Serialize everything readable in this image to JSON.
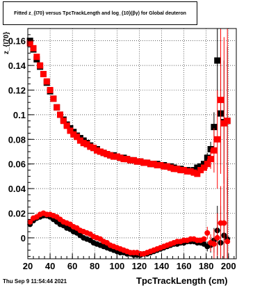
{
  "chart_data": {
    "type": "scatter",
    "title": "Fitted z_{I70} versus TpcTrackLength and log_{10}(βγ) for Global deuteron",
    "xlabel": "TpcTrackLength (cm)",
    "ylabel": "z_{I70}",
    "xlim": [
      20,
      207
    ],
    "ylim": [
      -0.017,
      0.17
    ],
    "xticks": [
      "20",
      "40",
      "60",
      "80",
      "100",
      "120",
      "140",
      "160",
      "180",
      "200"
    ],
    "yticks": [
      "0",
      "0.02",
      "0.04",
      "0.06",
      "0.08",
      "0.1",
      "0.12",
      "0.14",
      "0.16"
    ],
    "grid": true,
    "series": [
      {
        "color": "#000000",
        "marker": "square",
        "x": [
          22,
          25,
          28,
          31,
          34,
          37,
          40,
          43,
          46,
          49,
          52,
          55,
          58,
          61,
          64,
          67,
          70,
          73,
          76,
          79,
          82,
          85,
          88,
          91,
          94,
          97,
          100,
          103,
          106,
          109,
          112,
          115,
          118,
          121,
          124,
          127,
          130,
          133,
          136,
          139,
          142,
          145,
          148,
          151,
          154,
          157,
          160,
          163,
          166,
          169,
          172,
          175,
          178,
          181,
          184,
          187,
          190,
          193,
          196,
          199
        ],
        "y": [
          0.16,
          0.153,
          0.145,
          0.139,
          0.133,
          0.126,
          0.119,
          0.113,
          0.106,
          0.1,
          0.096,
          0.092,
          0.089,
          0.086,
          0.083,
          0.081,
          0.079,
          0.077,
          0.075,
          0.073,
          0.072,
          0.07,
          0.069,
          0.068,
          0.067,
          0.067,
          0.066,
          0.065,
          0.065,
          0.064,
          0.063,
          0.063,
          0.062,
          0.062,
          0.061,
          0.061,
          0.06,
          0.06,
          0.06,
          0.059,
          0.059,
          0.058,
          0.058,
          0.057,
          0.056,
          0.056,
          0.055,
          0.055,
          0.054,
          0.055,
          0.057,
          0.058,
          0.06,
          0.065,
          0.072,
          0.09,
          0.144,
          0.101,
          0.094,
          0.095
        ],
        "yerr": [
          0,
          0,
          0,
          0,
          0,
          0,
          0,
          0,
          0,
          0,
          0,
          0,
          0,
          0,
          0,
          0,
          0,
          0,
          0,
          0,
          0,
          0,
          0,
          0,
          0,
          0,
          0,
          0,
          0,
          0,
          0,
          0,
          0,
          0,
          0,
          0,
          0,
          0,
          0,
          0,
          0,
          0,
          0,
          0,
          0,
          0,
          0,
          0,
          0,
          0,
          0,
          0,
          0,
          0.004,
          0.006,
          0.012,
          0.03,
          0.04,
          0.05,
          0.06
        ]
      },
      {
        "color": "#ff0000",
        "marker": "square",
        "x": [
          22,
          25,
          28,
          31,
          34,
          37,
          40,
          43,
          46,
          49,
          52,
          55,
          58,
          61,
          64,
          67,
          70,
          73,
          76,
          79,
          82,
          85,
          88,
          91,
          94,
          97,
          100,
          103,
          106,
          109,
          112,
          115,
          118,
          121,
          124,
          127,
          130,
          133,
          136,
          139,
          142,
          145,
          148,
          151,
          154,
          157,
          160,
          163,
          166,
          169,
          172,
          175,
          178,
          181,
          184,
          187,
          190,
          193,
          196,
          199
        ],
        "y": [
          0.158,
          0.154,
          0.147,
          0.14,
          0.133,
          0.127,
          0.12,
          0.113,
          0.106,
          0.1,
          0.095,
          0.091,
          0.087,
          0.084,
          0.082,
          0.079,
          0.077,
          0.076,
          0.074,
          0.073,
          0.071,
          0.07,
          0.069,
          0.068,
          0.067,
          0.066,
          0.066,
          0.065,
          0.064,
          0.064,
          0.063,
          0.063,
          0.062,
          0.062,
          0.061,
          0.061,
          0.06,
          0.06,
          0.059,
          0.059,
          0.058,
          0.058,
          0.057,
          0.056,
          0.056,
          0.055,
          0.055,
          0.054,
          0.054,
          0.053,
          0.052,
          0.055,
          0.057,
          0.06,
          0.064,
          0.071,
          0.08,
          0.112,
          0.093,
          0.095
        ],
        "yerr": [
          0,
          0,
          0,
          0,
          0,
          0,
          0,
          0,
          0,
          0,
          0,
          0,
          0,
          0,
          0,
          0,
          0,
          0,
          0,
          0,
          0,
          0,
          0,
          0,
          0,
          0,
          0,
          0,
          0,
          0,
          0,
          0,
          0,
          0,
          0,
          0,
          0,
          0,
          0,
          0,
          0,
          0,
          0,
          0,
          0,
          0,
          0,
          0,
          0,
          0,
          0,
          0,
          0,
          0.004,
          0.008,
          0.018,
          0.04,
          0.06,
          0.07,
          0.08
        ]
      },
      {
        "color": "#000000",
        "marker": "circle",
        "x": [
          22,
          25,
          28,
          31,
          34,
          37,
          40,
          43,
          46,
          49,
          52,
          55,
          58,
          61,
          64,
          67,
          70,
          73,
          76,
          79,
          82,
          85,
          88,
          91,
          94,
          97,
          100,
          103,
          106,
          109,
          112,
          115,
          118,
          121,
          124,
          127,
          130,
          133,
          136,
          139,
          142,
          145,
          148,
          151,
          154,
          157,
          160,
          163,
          166,
          169,
          172,
          175,
          178,
          181,
          184,
          187,
          190,
          193,
          196,
          199
        ],
        "y": [
          0.011,
          0.014,
          0.016,
          0.017,
          0.018,
          0.018,
          0.017,
          0.015,
          0.013,
          0.011,
          0.01,
          0.008,
          0.007,
          0.005,
          0.004,
          0.002,
          0.0,
          -0.001,
          -0.002,
          -0.004,
          -0.005,
          -0.006,
          -0.007,
          -0.008,
          -0.009,
          -0.01,
          -0.011,
          -0.012,
          -0.012,
          -0.013,
          -0.013,
          -0.014,
          -0.014,
          -0.014,
          -0.013,
          -0.013,
          -0.012,
          -0.011,
          -0.01,
          -0.009,
          -0.008,
          -0.007,
          -0.006,
          -0.005,
          -0.005,
          -0.004,
          -0.004,
          -0.003,
          -0.003,
          -0.003,
          -0.004,
          -0.004,
          -0.005,
          -0.007,
          -0.006,
          -0.002,
          0.006,
          -0.004,
          0.002,
          -0.001
        ],
        "yerr": [
          0,
          0,
          0,
          0,
          0,
          0,
          0,
          0,
          0,
          0,
          0,
          0,
          0,
          0,
          0,
          0,
          0,
          0,
          0,
          0,
          0,
          0,
          0,
          0,
          0,
          0,
          0,
          0,
          0,
          0,
          0,
          0,
          0,
          0,
          0,
          0,
          0,
          0,
          0,
          0,
          0,
          0,
          0,
          0,
          0,
          0,
          0,
          0,
          0,
          0,
          0,
          0,
          0,
          0.004,
          0.006,
          0.01,
          0.02,
          0.03,
          0.04,
          0.05
        ]
      },
      {
        "color": "#ff0000",
        "marker": "circle",
        "x": [
          22,
          25,
          28,
          31,
          34,
          37,
          40,
          43,
          46,
          49,
          52,
          55,
          58,
          61,
          64,
          67,
          70,
          73,
          76,
          79,
          82,
          85,
          88,
          91,
          94,
          97,
          100,
          103,
          106,
          109,
          112,
          115,
          118,
          121,
          124,
          127,
          130,
          133,
          136,
          139,
          142,
          145,
          148,
          151,
          154,
          157,
          160,
          163,
          166,
          169,
          172,
          175,
          178,
          181,
          184,
          187,
          190,
          193,
          196,
          199
        ],
        "y": [
          0.013,
          0.016,
          0.017,
          0.019,
          0.02,
          0.019,
          0.019,
          0.018,
          0.017,
          0.015,
          0.013,
          0.012,
          0.011,
          0.009,
          0.008,
          0.006,
          0.005,
          0.004,
          0.003,
          0.001,
          0.0,
          -0.001,
          -0.003,
          -0.004,
          -0.006,
          -0.007,
          -0.008,
          -0.009,
          -0.01,
          -0.011,
          -0.012,
          -0.012,
          -0.012,
          -0.013,
          -0.013,
          -0.012,
          -0.011,
          -0.01,
          -0.009,
          -0.008,
          -0.007,
          -0.006,
          -0.005,
          -0.004,
          -0.003,
          -0.003,
          -0.002,
          -0.002,
          -0.001,
          -0.001,
          -0.002,
          -0.002,
          -0.001,
          0.004,
          -0.004,
          -0.005,
          0.0,
          0.012,
          0.012,
          -0.003
        ],
        "yerr": [
          0,
          0,
          0,
          0,
          0,
          0,
          0,
          0,
          0,
          0,
          0,
          0,
          0,
          0,
          0,
          0,
          0,
          0,
          0,
          0,
          0,
          0,
          0,
          0,
          0,
          0,
          0,
          0,
          0,
          0,
          0,
          0,
          0,
          0,
          0,
          0,
          0,
          0,
          0,
          0,
          0,
          0,
          0,
          0,
          0,
          0,
          0,
          0,
          0,
          0,
          0,
          0,
          0,
          0.005,
          0.007,
          0.012,
          0.02,
          0.03,
          0.05,
          0.06
        ]
      }
    ]
  },
  "title_text": "Fitted  z_{I70}  versus TpcTrackLength and log_{10}(βγ) for Global deuteron",
  "footer_date": "Thu Sep  9 11:54:44 2021",
  "xaxis_title": "TpcTrackLength (cm)",
  "yaxis_title": "z_{I70}"
}
